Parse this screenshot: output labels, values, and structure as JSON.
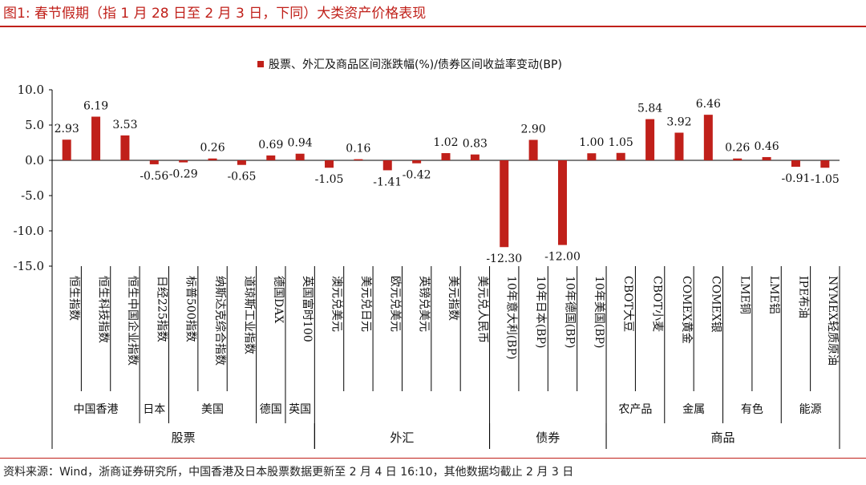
{
  "figure_label": "图1:",
  "figure_title": "春节假期（指 1 月 28 日至 2 月 3 日，下同）大类资产价格表现",
  "source_note": "资料来源：Wind，浙商证券研究所，中国香港及日本股票数据更新至 2 月 4 日 16:10，其他数据均截止 2 月 3 日",
  "colors": {
    "bar": "#c0201a",
    "accent": "#c0201a"
  },
  "chart_data": {
    "type": "bar",
    "legend": "股票、外汇及商品区间涨跌幅(%)/债券区间收益率变动(BP)",
    "legend_position": "top-center",
    "ylim": [
      -15,
      10
    ],
    "yticks": [
      "10.0",
      "5.0",
      "0.0",
      "-5.0",
      "-10.0",
      "-15.0"
    ],
    "grid": false,
    "categories": [
      "恒生指数",
      "恒生科技指数",
      "恒生中国企业指数",
      "日经225指数",
      "标普500指数",
      "纳斯达克综合指数",
      "道琼斯工业指数",
      "德国DAX",
      "英国富时100",
      "澳元兑美元",
      "美元兑日元",
      "欧元兑美元",
      "英镑兑美元",
      "美元指数",
      "美元兑人民币",
      "10年意大利(BP)",
      "10年日本(BP)",
      "10年德国(BP)",
      "10年美国(BP)",
      "CBOT大豆",
      "CBOT小麦",
      "COMEX黄金",
      "COMEX银",
      "LME铜",
      "LME铝",
      "IPE布油",
      "NYMEX轻质原油"
    ],
    "values": [
      2.93,
      6.19,
      3.53,
      -0.56,
      -0.29,
      0.26,
      -0.65,
      0.69,
      0.94,
      -1.05,
      0.16,
      -1.41,
      -0.42,
      1.02,
      0.83,
      -12.3,
      2.9,
      -12.0,
      1.0,
      1.05,
      5.84,
      3.92,
      6.46,
      0.26,
      0.46,
      -0.91,
      -1.05
    ],
    "value_labels": [
      "2.93",
      "6.19",
      "3.53",
      "-0.56",
      "-0.29",
      "0.26",
      "-0.65",
      "0.69",
      "0.94",
      "-1.05",
      "0.16",
      "-1.41",
      "-0.42",
      "1.02",
      "0.83",
      "-12.30",
      "2.90",
      "-12.00",
      "1.00",
      "1.05",
      "5.84",
      "3.92",
      "6.46",
      "0.26",
      "0.46",
      "-0.91",
      "-1.05"
    ],
    "subgroups": [
      {
        "label": "中国香港",
        "start": 0,
        "end": 2
      },
      {
        "label": "日本",
        "start": 3,
        "end": 3
      },
      {
        "label": "美国",
        "start": 4,
        "end": 6
      },
      {
        "label": "德国",
        "start": 7,
        "end": 7
      },
      {
        "label": "英国",
        "start": 8,
        "end": 8
      },
      {
        "label": "农产品",
        "start": 19,
        "end": 20
      },
      {
        "label": "金属",
        "start": 21,
        "end": 22
      },
      {
        "label": "有色",
        "start": 23,
        "end": 24
      },
      {
        "label": "能源",
        "start": 25,
        "end": 26
      }
    ],
    "groups": [
      {
        "label": "股票",
        "start": 0,
        "end": 8
      },
      {
        "label": "外汇",
        "start": 9,
        "end": 14
      },
      {
        "label": "债券",
        "start": 15,
        "end": 18
      },
      {
        "label": "商品",
        "start": 19,
        "end": 26
      }
    ]
  }
}
